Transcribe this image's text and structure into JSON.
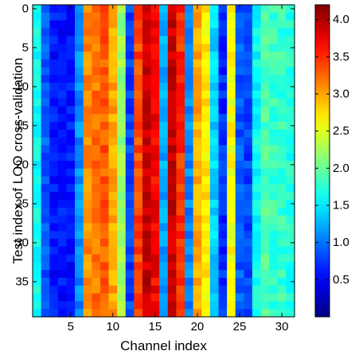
{
  "chart_data": {
    "type": "heatmap",
    "xlabel": "Channel index",
    "ylabel": "Test index of LOO cross-validation",
    "x_range": [
      1,
      31
    ],
    "y_range": [
      0,
      39
    ],
    "x_ticks": [
      5,
      10,
      15,
      20,
      25,
      30
    ],
    "x_tick_labels": [
      "5",
      "10",
      "15",
      "20",
      "25",
      "30"
    ],
    "y_ticks": [
      0,
      5,
      10,
      15,
      20,
      25,
      30,
      35
    ],
    "y_tick_labels": [
      "0",
      "5",
      "10",
      "15",
      "20",
      "25",
      "30",
      "35"
    ],
    "y_reversed": true,
    "colormap": "jet",
    "clim": [
      0,
      4.2
    ],
    "colorbar_ticks": [
      0.5,
      1.0,
      1.5,
      2.0,
      2.5,
      3.0,
      3.5,
      4.0
    ],
    "colorbar_tick_labels": [
      "0.5",
      "1.0",
      "1.5",
      "2.0",
      "2.5",
      "3.0",
      "3.5",
      "4.0"
    ],
    "channel_column_values": [
      1.6,
      0.9,
      0.6,
      0.6,
      0.6,
      1.1,
      3.1,
      3.2,
      3.3,
      3.0,
      2.2,
      0.8,
      3.4,
      3.9,
      3.7,
      1.2,
      3.9,
      3.5,
      1.1,
      3.0,
      2.7,
      1.4,
      0.7,
      2.6,
      0.9,
      0.8,
      1.6,
      1.9,
      1.8,
      1.8,
      1.7
    ],
    "grid": false
  }
}
